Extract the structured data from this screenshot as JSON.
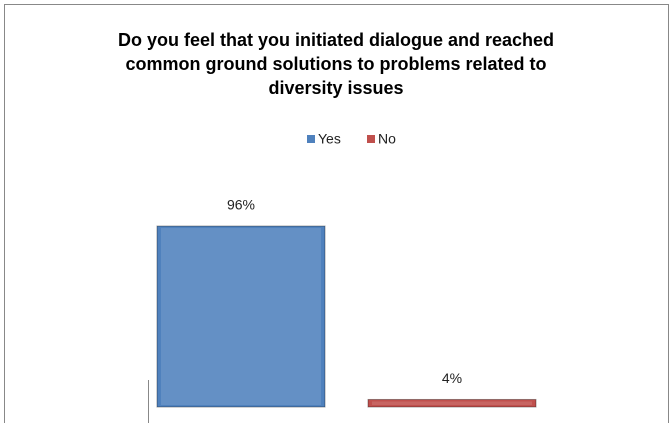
{
  "chart_data": {
    "type": "bar",
    "title": "Do you feel that you initiated dialogue and reached common ground solutions to problems related to diversity issues",
    "categories": [
      null
    ],
    "series": [
      {
        "name": "Yes",
        "color": "#4f81bd",
        "values": [
          96
        ],
        "value_labels": [
          "96%"
        ]
      },
      {
        "name": "No",
        "color": "#c0504d",
        "values": [
          4
        ],
        "value_labels": [
          "4%"
        ]
      }
    ],
    "ylim": [
      0,
      100
    ],
    "legend": "top"
  }
}
